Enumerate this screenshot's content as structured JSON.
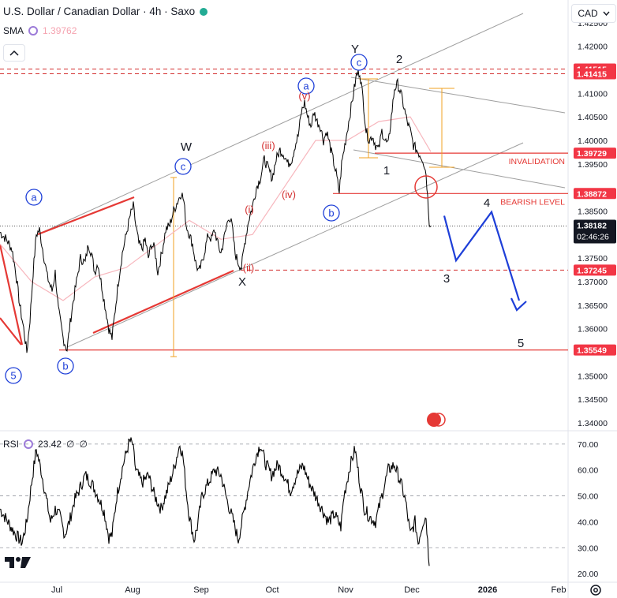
{
  "header": {
    "title": "U.S. Dollar / Canadian Dollar · 4h · Saxo",
    "indicator_label": "SMA",
    "indicator_value": "1.39762",
    "currency_button": "CAD"
  },
  "rsi_panel": {
    "label": "RSI",
    "value": "23.42",
    "extra1": "∅",
    "extra2": "∅",
    "levels": [
      70,
      60,
      50,
      40,
      30,
      20
    ],
    "tick_labels": [
      "70.00",
      "60.00",
      "50.00",
      "40.00",
      "30.00",
      "20.00"
    ]
  },
  "colors": {
    "price": "#000000",
    "sma": "#f7b6bd",
    "red_line": "#e53935",
    "dashed_red": "#d32f2f",
    "channel": "#9e9e9e",
    "projection": "#1e3fd8",
    "measure": "#f0a020",
    "count_blue": "#1e3fd8",
    "count_red": "#d32f2f"
  },
  "chart_data": [
    {
      "type": "line",
      "name": "price",
      "x_ticks": [
        "Jul",
        "Aug",
        "Sep",
        "Oct",
        "Nov",
        "Dec",
        "2026",
        "Feb"
      ],
      "y_ticks": [
        "1.42000",
        "1.41000",
        "1.40500",
        "1.40000",
        "1.39500",
        "1.38500",
        "1.37500",
        "1.37000",
        "1.36500",
        "1.36000",
        "1.35000",
        "1.34500",
        "1.34000"
      ],
      "y_top_partial": "1.42500",
      "ylim": [
        1.3385,
        1.4258
      ],
      "price_tags": [
        {
          "value": 1.41515,
          "label": "1.41515",
          "style": "red"
        },
        {
          "value": 1.41415,
          "label": "1.41415",
          "style": "red"
        },
        {
          "value": 1.39729,
          "label": "1.39729",
          "style": "red"
        },
        {
          "value": 1.38872,
          "label": "1.38872",
          "style": "red"
        },
        {
          "value": 1.38182,
          "label": "1.38182",
          "style": "dark",
          "sub": "02:46:26"
        },
        {
          "value": 1.37245,
          "label": "1.37245",
          "style": "red"
        },
        {
          "value": 1.35549,
          "label": "1.35549",
          "style": "red"
        }
      ],
      "annotations": {
        "invalidation": "INVALIDATION",
        "bearish_level": "BEARISH LEVEL",
        "wave_blue_circles": [
          "5",
          "a",
          "b",
          "c",
          "a",
          "b",
          "c"
        ],
        "wave_letters": [
          "W",
          "X",
          "Y"
        ],
        "wave_red": [
          "(i)",
          "(ii)",
          "(iii)",
          "(iv)",
          "(v)"
        ],
        "wave_numbers": [
          "1",
          "2",
          "3",
          "4",
          "5"
        ]
      },
      "price_path": [
        [
          0,
          1.3805
        ],
        [
          8,
          1.379
        ],
        [
          15,
          1.377
        ],
        [
          20,
          1.372
        ],
        [
          25,
          1.365
        ],
        [
          30,
          1.36
        ],
        [
          34,
          1.355
        ],
        [
          38,
          1.362
        ],
        [
          42,
          1.372
        ],
        [
          46,
          1.38
        ],
        [
          50,
          1.381
        ],
        [
          55,
          1.376
        ],
        [
          60,
          1.371
        ],
        [
          66,
          1.368
        ],
        [
          70,
          1.372
        ],
        [
          74,
          1.364
        ],
        [
          80,
          1.358
        ],
        [
          85,
          1.3555
        ],
        [
          88,
          1.36
        ],
        [
          92,
          1.365
        ],
        [
          97,
          1.37
        ],
        [
          102,
          1.375
        ],
        [
          108,
          1.374
        ],
        [
          112,
          1.378
        ],
        [
          116,
          1.376
        ],
        [
          120,
          1.372
        ],
        [
          124,
          1.374
        ],
        [
          128,
          1.37
        ],
        [
          133,
          1.365
        ],
        [
          138,
          1.36
        ],
        [
          142,
          1.358
        ],
        [
          146,
          1.364
        ],
        [
          150,
          1.37
        ],
        [
          155,
          1.376
        ],
        [
          160,
          1.38
        ],
        [
          165,
          1.384
        ],
        [
          169,
          1.386
        ],
        [
          172,
          1.382
        ],
        [
          176,
          1.378
        ],
        [
          180,
          1.377
        ],
        [
          184,
          1.379
        ],
        [
          188,
          1.375
        ],
        [
          192,
          1.378
        ],
        [
          196,
          1.377
        ],
        [
          200,
          1.372
        ],
        [
          205,
          1.376
        ],
        [
          210,
          1.381
        ],
        [
          215,
          1.382
        ],
        [
          220,
          1.385
        ],
        [
          225,
          1.387
        ],
        [
          230,
          1.389
        ],
        [
          233,
          1.387
        ],
        [
          236,
          1.382
        ],
        [
          240,
          1.38
        ],
        [
          244,
          1.378
        ],
        [
          248,
          1.374
        ],
        [
          252,
          1.372
        ],
        [
          256,
          1.374
        ],
        [
          260,
          1.377
        ],
        [
          264,
          1.38
        ],
        [
          268,
          1.379
        ],
        [
          272,
          1.381
        ],
        [
          276,
          1.378
        ],
        [
          280,
          1.376
        ],
        [
          285,
          1.38
        ],
        [
          290,
          1.384
        ],
        [
          294,
          1.382
        ],
        [
          298,
          1.376
        ],
        [
          302,
          1.374
        ],
        [
          306,
          1.373
        ],
        [
          310,
          1.378
        ],
        [
          315,
          1.383
        ],
        [
          320,
          1.386
        ],
        [
          325,
          1.39
        ],
        [
          330,
          1.392
        ],
        [
          335,
          1.396
        ],
        [
          340,
          1.394
        ],
        [
          345,
          1.392
        ],
        [
          350,
          1.396
        ],
        [
          355,
          1.398
        ],
        [
          360,
          1.397
        ],
        [
          365,
          1.395
        ],
        [
          370,
          1.396
        ],
        [
          374,
          1.399
        ],
        [
          378,
          1.401
        ],
        [
          382,
          1.406
        ],
        [
          386,
          1.408
        ],
        [
          390,
          1.405
        ],
        [
          394,
          1.403
        ],
        [
          398,
          1.406
        ],
        [
          402,
          1.404
        ],
        [
          406,
          1.403
        ],
        [
          410,
          1.4
        ],
        [
          414,
          1.402
        ],
        [
          418,
          1.399
        ],
        [
          422,
          1.396
        ],
        [
          426,
          1.393
        ],
        [
          430,
          1.389
        ],
        [
          433,
          1.395
        ],
        [
          436,
          1.398
        ],
        [
          440,
          1.402
        ],
        [
          444,
          1.406
        ],
        [
          448,
          1.41
        ],
        [
          452,
          1.414
        ],
        [
          456,
          1.4145
        ],
        [
          460,
          1.409
        ],
        [
          464,
          1.402
        ],
        [
          468,
          1.4
        ],
        [
          472,
          1.401
        ],
        [
          476,
          1.399
        ],
        [
          480,
          1.398
        ],
        [
          484,
          1.402
        ],
        [
          488,
          1.4
        ],
        [
          492,
          1.399
        ],
        [
          496,
          1.405
        ],
        [
          500,
          1.411
        ],
        [
          504,
          1.412
        ],
        [
          508,
          1.41
        ],
        [
          512,
          1.407
        ],
        [
          516,
          1.404
        ],
        [
          520,
          1.402
        ],
        [
          524,
          1.399
        ],
        [
          528,
          1.398
        ],
        [
          532,
          1.397
        ],
        [
          536,
          1.396
        ],
        [
          540,
          1.393
        ],
        [
          542,
          1.388
        ],
        [
          544,
          1.383
        ],
        [
          546,
          1.3818
        ]
      ],
      "sma_path": [
        [
          0,
          1.378
        ],
        [
          40,
          1.37
        ],
        [
          80,
          1.366
        ],
        [
          120,
          1.371
        ],
        [
          160,
          1.373
        ],
        [
          200,
          1.378
        ],
        [
          240,
          1.383
        ],
        [
          280,
          1.379
        ],
        [
          320,
          1.38
        ],
        [
          360,
          1.39
        ],
        [
          400,
          1.4
        ],
        [
          440,
          1.4
        ],
        [
          480,
          1.404
        ],
        [
          520,
          1.405
        ],
        [
          546,
          1.3976
        ]
      ],
      "projection_path": [
        [
          563,
          1.384
        ],
        [
          578,
          1.3745
        ],
        [
          623,
          1.3848
        ],
        [
          658,
          1.366
        ]
      ]
    },
    {
      "type": "line",
      "name": "rsi",
      "ylim": [
        17,
        73
      ],
      "rsi_path": [
        [
          0,
          45
        ],
        [
          10,
          40
        ],
        [
          20,
          35
        ],
        [
          28,
          32
        ],
        [
          34,
          40
        ],
        [
          40,
          55
        ],
        [
          46,
          68
        ],
        [
          52,
          60
        ],
        [
          58,
          50
        ],
        [
          64,
          40
        ],
        [
          70,
          45
        ],
        [
          76,
          42
        ],
        [
          82,
          35
        ],
        [
          88,
          40
        ],
        [
          94,
          48
        ],
        [
          100,
          52
        ],
        [
          108,
          58
        ],
        [
          116,
          55
        ],
        [
          124,
          50
        ],
        [
          132,
          44
        ],
        [
          138,
          34
        ],
        [
          142,
          35
        ],
        [
          148,
          50
        ],
        [
          156,
          62
        ],
        [
          164,
          71
        ],
        [
          168,
          70
        ],
        [
          172,
          60
        ],
        [
          180,
          55
        ],
        [
          188,
          58
        ],
        [
          196,
          50
        ],
        [
          204,
          45
        ],
        [
          212,
          52
        ],
        [
          220,
          60
        ],
        [
          228,
          70
        ],
        [
          232,
          65
        ],
        [
          236,
          52
        ],
        [
          240,
          42
        ],
        [
          246,
          33
        ],
        [
          250,
          38
        ],
        [
          256,
          50
        ],
        [
          264,
          55
        ],
        [
          272,
          60
        ],
        [
          280,
          58
        ],
        [
          288,
          48
        ],
        [
          296,
          40
        ],
        [
          302,
          33
        ],
        [
          308,
          42
        ],
        [
          316,
          55
        ],
        [
          324,
          65
        ],
        [
          330,
          70
        ],
        [
          336,
          63
        ],
        [
          344,
          58
        ],
        [
          352,
          62
        ],
        [
          360,
          58
        ],
        [
          368,
          52
        ],
        [
          376,
          58
        ],
        [
          384,
          62
        ],
        [
          392,
          55
        ],
        [
          400,
          50
        ],
        [
          408,
          45
        ],
        [
          416,
          40
        ],
        [
          424,
          43
        ],
        [
          432,
          38
        ],
        [
          436,
          50
        ],
        [
          444,
          62
        ],
        [
          450,
          68
        ],
        [
          456,
          55
        ],
        [
          462,
          45
        ],
        [
          468,
          42
        ],
        [
          476,
          40
        ],
        [
          484,
          50
        ],
        [
          492,
          60
        ],
        [
          500,
          62
        ],
        [
          508,
          55
        ],
        [
          514,
          48
        ],
        [
          520,
          35
        ],
        [
          526,
          40
        ],
        [
          530,
          32
        ],
        [
          536,
          40
        ],
        [
          540,
          42
        ],
        [
          544,
          23
        ]
      ]
    }
  ]
}
